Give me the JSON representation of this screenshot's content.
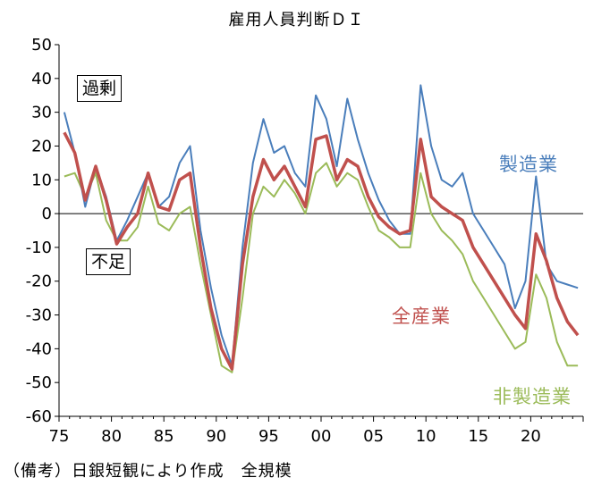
{
  "chart_data": {
    "type": "line",
    "title": "雇用人員判断ＤＩ",
    "note": "（備考）日銀短観により作成　全規模",
    "annotations": {
      "surplus": "過剰",
      "shortage": "不足"
    },
    "xlim": [
      1975,
      2025
    ],
    "ylim": [
      -60,
      50
    ],
    "x_ticks": [
      1975,
      1980,
      1985,
      1990,
      1995,
      2000,
      2005,
      2010,
      2015,
      2020
    ],
    "x_tick_labels": [
      "75",
      "80",
      "85",
      "90",
      "95",
      "00",
      "05",
      "10",
      "15",
      "20"
    ],
    "y_ticks": [
      50,
      40,
      30,
      20,
      10,
      0,
      -10,
      -20,
      -30,
      -40,
      -50,
      -60
    ],
    "grid": false,
    "x": [
      1975,
      1976,
      1977,
      1978,
      1979,
      1980,
      1981,
      1982,
      1983,
      1984,
      1985,
      1986,
      1987,
      1988,
      1989,
      1990,
      1991,
      1992,
      1993,
      1994,
      1995,
      1996,
      1997,
      1998,
      1999,
      2000,
      2001,
      2002,
      2003,
      2004,
      2005,
      2006,
      2007,
      2008,
      2009,
      2010,
      2011,
      2012,
      2013,
      2014,
      2015,
      2016,
      2017,
      2018,
      2019,
      2020,
      2021,
      2022,
      2023,
      2024
    ],
    "series": [
      {
        "name": "製造業",
        "color": "#4a7ebb",
        "values": [
          30,
          18,
          2,
          14,
          5,
          -8,
          -2,
          5,
          12,
          2,
          5,
          15,
          20,
          -5,
          -22,
          -36,
          -45,
          -10,
          15,
          28,
          18,
          20,
          12,
          8,
          35,
          28,
          14,
          34,
          22,
          12,
          4,
          -2,
          -6,
          -6,
          38,
          20,
          10,
          8,
          12,
          0,
          -5,
          -10,
          -15,
          -28,
          -20,
          11,
          -15,
          -20,
          -21,
          -22
        ]
      },
      {
        "name": "全産業",
        "color": "#c0504d",
        "values": [
          24,
          18,
          4,
          14,
          4,
          -9,
          -4,
          0,
          12,
          2,
          1,
          10,
          12,
          -10,
          -28,
          -40,
          -46,
          -15,
          5,
          16,
          10,
          14,
          8,
          2,
          22,
          23,
          10,
          16,
          14,
          5,
          -1,
          -4,
          -6,
          -5,
          22,
          5,
          2,
          0,
          -2,
          -10,
          -15,
          -20,
          -25,
          -30,
          -34,
          -6,
          -14,
          -25,
          -32,
          -36
        ]
      },
      {
        "name": "非製造業",
        "color": "#9bbb59",
        "values": [
          11,
          12,
          5,
          12,
          -2,
          -8,
          -8,
          -4,
          8,
          -3,
          -5,
          0,
          2,
          -15,
          -30,
          -45,
          -47,
          -25,
          0,
          8,
          5,
          10,
          6,
          0,
          12,
          15,
          8,
          12,
          10,
          2,
          -5,
          -7,
          -10,
          -10,
          12,
          0,
          -5,
          -8,
          -12,
          -20,
          -25,
          -30,
          -35,
          -40,
          -38,
          -18,
          -25,
          -38,
          -45,
          -45
        ]
      }
    ]
  }
}
